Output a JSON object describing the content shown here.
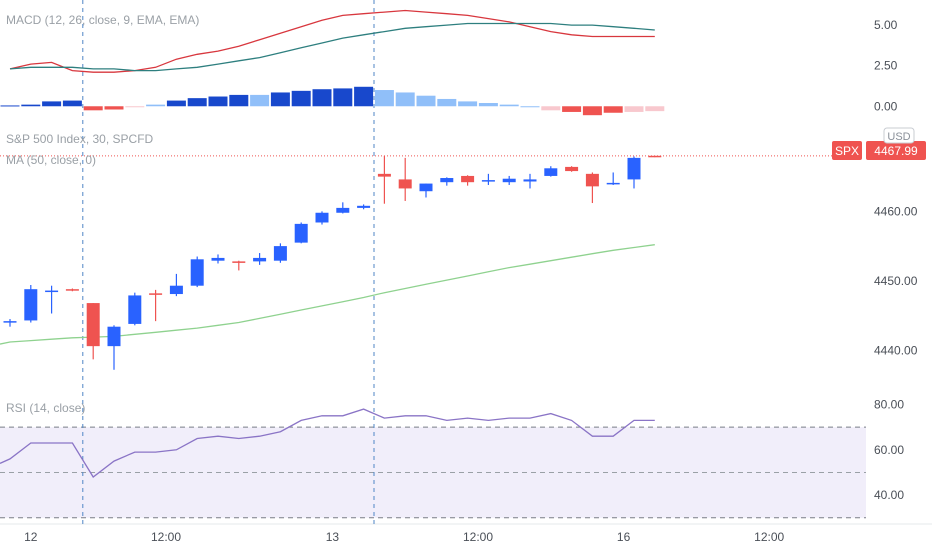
{
  "colors": {
    "up": "#2962ff",
    "down": "#ef5350",
    "hist_up_strong": "#1848cc",
    "hist_up_weak": "#90bff9",
    "hist_down_strong": "#ef5350",
    "hist_down_weak": "#f8c8ce",
    "macd_line": "#d8373e",
    "signal_line": "#2e7f7f",
    "ma_line": "#8fd28f",
    "rsi_line": "#8a74c6",
    "rsi_band": "#f1eefa",
    "price_tag": "#ef5350",
    "session_line": "#4f86c6"
  },
  "price_tag": {
    "symbol": "SPX",
    "value": "4467.99",
    "currency": "USD"
  },
  "chart_data": [
    {
      "type": "line",
      "panel": "MACD",
      "title": "MACD (12, 26, close, 9, EMA, EMA)",
      "ylim": [
        -0.6,
        6.3
      ],
      "yticks": [
        "5.00",
        "2.50",
        "0.00"
      ],
      "ytick_values": [
        5,
        2.5,
        0
      ],
      "x": [
        0,
        1,
        2,
        3,
        4,
        5,
        6,
        7,
        8,
        9,
        10,
        11,
        12,
        13,
        14,
        15,
        16,
        17,
        18,
        19,
        20,
        21,
        22,
        23,
        24,
        25,
        26,
        27,
        28,
        29,
        30,
        31
      ],
      "series": [
        {
          "name": "MACD",
          "values": [
            2.3,
            2.6,
            2.7,
            2.2,
            2.1,
            2.1,
            2.2,
            2.4,
            2.9,
            3.2,
            3.4,
            3.7,
            4.1,
            4.5,
            4.9,
            5.3,
            5.6,
            5.7,
            5.8,
            5.9,
            5.8,
            5.7,
            5.6,
            5.4,
            5.2,
            4.9,
            4.6,
            4.4,
            4.3,
            4.3,
            4.3,
            4.3
          ]
        },
        {
          "name": "Signal",
          "values": [
            2.3,
            2.4,
            2.4,
            2.4,
            2.3,
            2.3,
            2.2,
            2.2,
            2.3,
            2.4,
            2.6,
            2.8,
            3.0,
            3.3,
            3.6,
            3.9,
            4.2,
            4.4,
            4.6,
            4.8,
            4.9,
            5.0,
            5.1,
            5.1,
            5.1,
            5.1,
            5.1,
            5.0,
            5.0,
            4.9,
            4.8,
            4.7
          ]
        }
      ],
      "histogram": [
        0.05,
        0.1,
        0.3,
        0.35,
        -0.25,
        -0.2,
        -0.05,
        0.1,
        0.35,
        0.5,
        0.6,
        0.7,
        0.7,
        0.85,
        0.95,
        1.05,
        1.1,
        1.2,
        1.0,
        0.85,
        0.65,
        0.45,
        0.3,
        0.2,
        0.1,
        -0.05,
        -0.25,
        -0.35,
        -0.55,
        -0.4,
        -0.35,
        -0.3
      ],
      "hist_colors": [
        "up_strong",
        "up_strong",
        "up_strong",
        "up_strong",
        "down_strong",
        "down_strong",
        "down_weak",
        "up_weak",
        "up_strong",
        "up_strong",
        "up_strong",
        "up_strong",
        "up_weak",
        "up_strong",
        "up_strong",
        "up_strong",
        "up_strong",
        "up_strong",
        "up_weak",
        "up_weak",
        "up_weak",
        "up_weak",
        "up_weak",
        "up_weak",
        "up_weak",
        "up_weak",
        "down_weak",
        "down_strong",
        "down_strong",
        "down_strong",
        "down_weak",
        "down_weak"
      ]
    },
    {
      "type": "candlestick",
      "panel": "Price",
      "title": "S&P 500 Index, 30, SPCFD",
      "subtitle": "MA (50, close, 0)",
      "ylim": [
        4434.0,
        4472.0
      ],
      "yticks": [
        "4460.00",
        "4450.00",
        "4440.00"
      ],
      "ytick_values": [
        4460,
        4450,
        4440
      ],
      "last_price": 4467.99,
      "candles": [
        {
          "x": 0,
          "o": 4444.0,
          "h": 4444.5,
          "l": 4443.4,
          "c": 4444.2
        },
        {
          "x": 1,
          "o": 4444.3,
          "h": 4449.4,
          "l": 4444.0,
          "c": 4448.8
        },
        {
          "x": 2,
          "o": 4448.6,
          "h": 4449.3,
          "l": 4445.3,
          "c": 4448.6
        },
        {
          "x": 3,
          "o": 4448.8,
          "h": 4448.9,
          "l": 4448.5,
          "c": 4448.6
        },
        {
          "x": 4,
          "o": 4446.8,
          "h": 4446.8,
          "l": 4438.7,
          "c": 4440.6
        },
        {
          "x": 5,
          "o": 4440.6,
          "h": 4443.6,
          "l": 4437.2,
          "c": 4443.4
        },
        {
          "x": 6,
          "o": 4443.8,
          "h": 4448.3,
          "l": 4443.6,
          "c": 4447.9
        },
        {
          "x": 7,
          "o": 4448.2,
          "h": 4448.7,
          "l": 4444.2,
          "c": 4448.1
        },
        {
          "x": 8,
          "o": 4448.1,
          "h": 4451.0,
          "l": 4447.8,
          "c": 4449.3
        },
        {
          "x": 9,
          "o": 4449.3,
          "h": 4453.5,
          "l": 4449.1,
          "c": 4453.1
        },
        {
          "x": 10,
          "o": 4452.9,
          "h": 4453.8,
          "l": 4452.5,
          "c": 4453.3
        },
        {
          "x": 11,
          "o": 4452.8,
          "h": 4452.9,
          "l": 4451.5,
          "c": 4452.6
        },
        {
          "x": 12,
          "o": 4452.8,
          "h": 4454.0,
          "l": 4452.3,
          "c": 4453.3
        },
        {
          "x": 13,
          "o": 4452.9,
          "h": 4455.4,
          "l": 4452.6,
          "c": 4455.0
        },
        {
          "x": 14,
          "o": 4455.5,
          "h": 4458.4,
          "l": 4455.4,
          "c": 4458.2
        },
        {
          "x": 15,
          "o": 4458.4,
          "h": 4460.0,
          "l": 4458.1,
          "c": 4459.8
        },
        {
          "x": 16,
          "o": 4459.8,
          "h": 4461.3,
          "l": 4459.7,
          "c": 4460.5
        },
        {
          "x": 17,
          "o": 4460.5,
          "h": 4461.0,
          "l": 4460.3,
          "c": 4460.8
        },
        {
          "x": 18,
          "o": 4465.4,
          "h": 4468.0,
          "l": 4461.1,
          "c": 4465.0
        },
        {
          "x": 19,
          "o": 4464.6,
          "h": 4467.7,
          "l": 4461.5,
          "c": 4463.3
        },
        {
          "x": 20,
          "o": 4462.9,
          "h": 4464.0,
          "l": 4462.0,
          "c": 4464.0
        },
        {
          "x": 21,
          "o": 4464.2,
          "h": 4464.9,
          "l": 4463.7,
          "c": 4464.8
        },
        {
          "x": 22,
          "o": 4465.1,
          "h": 4465.2,
          "l": 4463.7,
          "c": 4464.2
        },
        {
          "x": 23,
          "o": 4464.4,
          "h": 4465.4,
          "l": 4463.8,
          "c": 4464.5
        },
        {
          "x": 24,
          "o": 4464.2,
          "h": 4465.1,
          "l": 4463.8,
          "c": 4464.7
        },
        {
          "x": 25,
          "o": 4464.3,
          "h": 4465.4,
          "l": 4463.3,
          "c": 4464.6
        },
        {
          "x": 26,
          "o": 4465.1,
          "h": 4466.5,
          "l": 4465.0,
          "c": 4466.2
        },
        {
          "x": 27,
          "o": 4466.4,
          "h": 4466.5,
          "l": 4465.7,
          "c": 4465.8
        },
        {
          "x": 28,
          "o": 4465.4,
          "h": 4465.6,
          "l": 4461.2,
          "c": 4463.6
        },
        {
          "x": 29,
          "o": 4464.0,
          "h": 4465.6,
          "l": 4463.8,
          "c": 4464.1
        },
        {
          "x": 30,
          "o": 4464.6,
          "h": 4467.9,
          "l": 4463.3,
          "c": 4467.7
        },
        {
          "x": 31,
          "o": 4468.0,
          "h": 4468.0,
          "l": 4467.8,
          "c": 4467.99
        }
      ],
      "ma": [
        4441.2,
        4441.4,
        4441.6,
        4441.8,
        4441.9,
        4442.0,
        4442.3,
        4442.6,
        4442.9,
        4443.2,
        4443.6,
        4444.0,
        4444.6,
        4445.2,
        4445.8,
        4446.4,
        4447.0,
        4447.6,
        4448.3,
        4448.9,
        4449.5,
        4450.1,
        4450.7,
        4451.3,
        4451.9,
        4452.4,
        4452.9,
        4453.4,
        4453.9,
        4454.4,
        4454.8,
        4455.2
      ]
    },
    {
      "type": "line",
      "panel": "RSI",
      "title": "RSI (14, close)",
      "ylim": [
        29.0,
        82.0
      ],
      "yticks": [
        "80.00",
        "60.00",
        "40.00"
      ],
      "ytick_values": [
        80,
        60,
        40
      ],
      "band": [
        30,
        70
      ],
      "midline": 50,
      "x": [
        0,
        1,
        2,
        3,
        4,
        5,
        6,
        7,
        8,
        9,
        10,
        11,
        12,
        13,
        14,
        15,
        16,
        17,
        18,
        19,
        20,
        21,
        22,
        23,
        24,
        25,
        26,
        27,
        28,
        29,
        30,
        31
      ],
      "values": [
        56,
        63,
        63,
        63,
        48,
        55,
        59,
        59,
        60,
        65,
        66,
        65,
        66,
        68,
        73,
        75,
        75,
        78,
        74,
        75,
        75,
        73,
        74,
        73,
        74,
        74,
        76,
        73,
        66,
        66,
        73,
        73
      ]
    }
  ],
  "time_axis": {
    "labels": [
      "12",
      "12:00",
      "13",
      "12:00",
      "16",
      "12:00"
    ],
    "label_x": [
      1,
      7.5,
      15.5,
      22.5,
      29.5,
      36.5
    ]
  }
}
